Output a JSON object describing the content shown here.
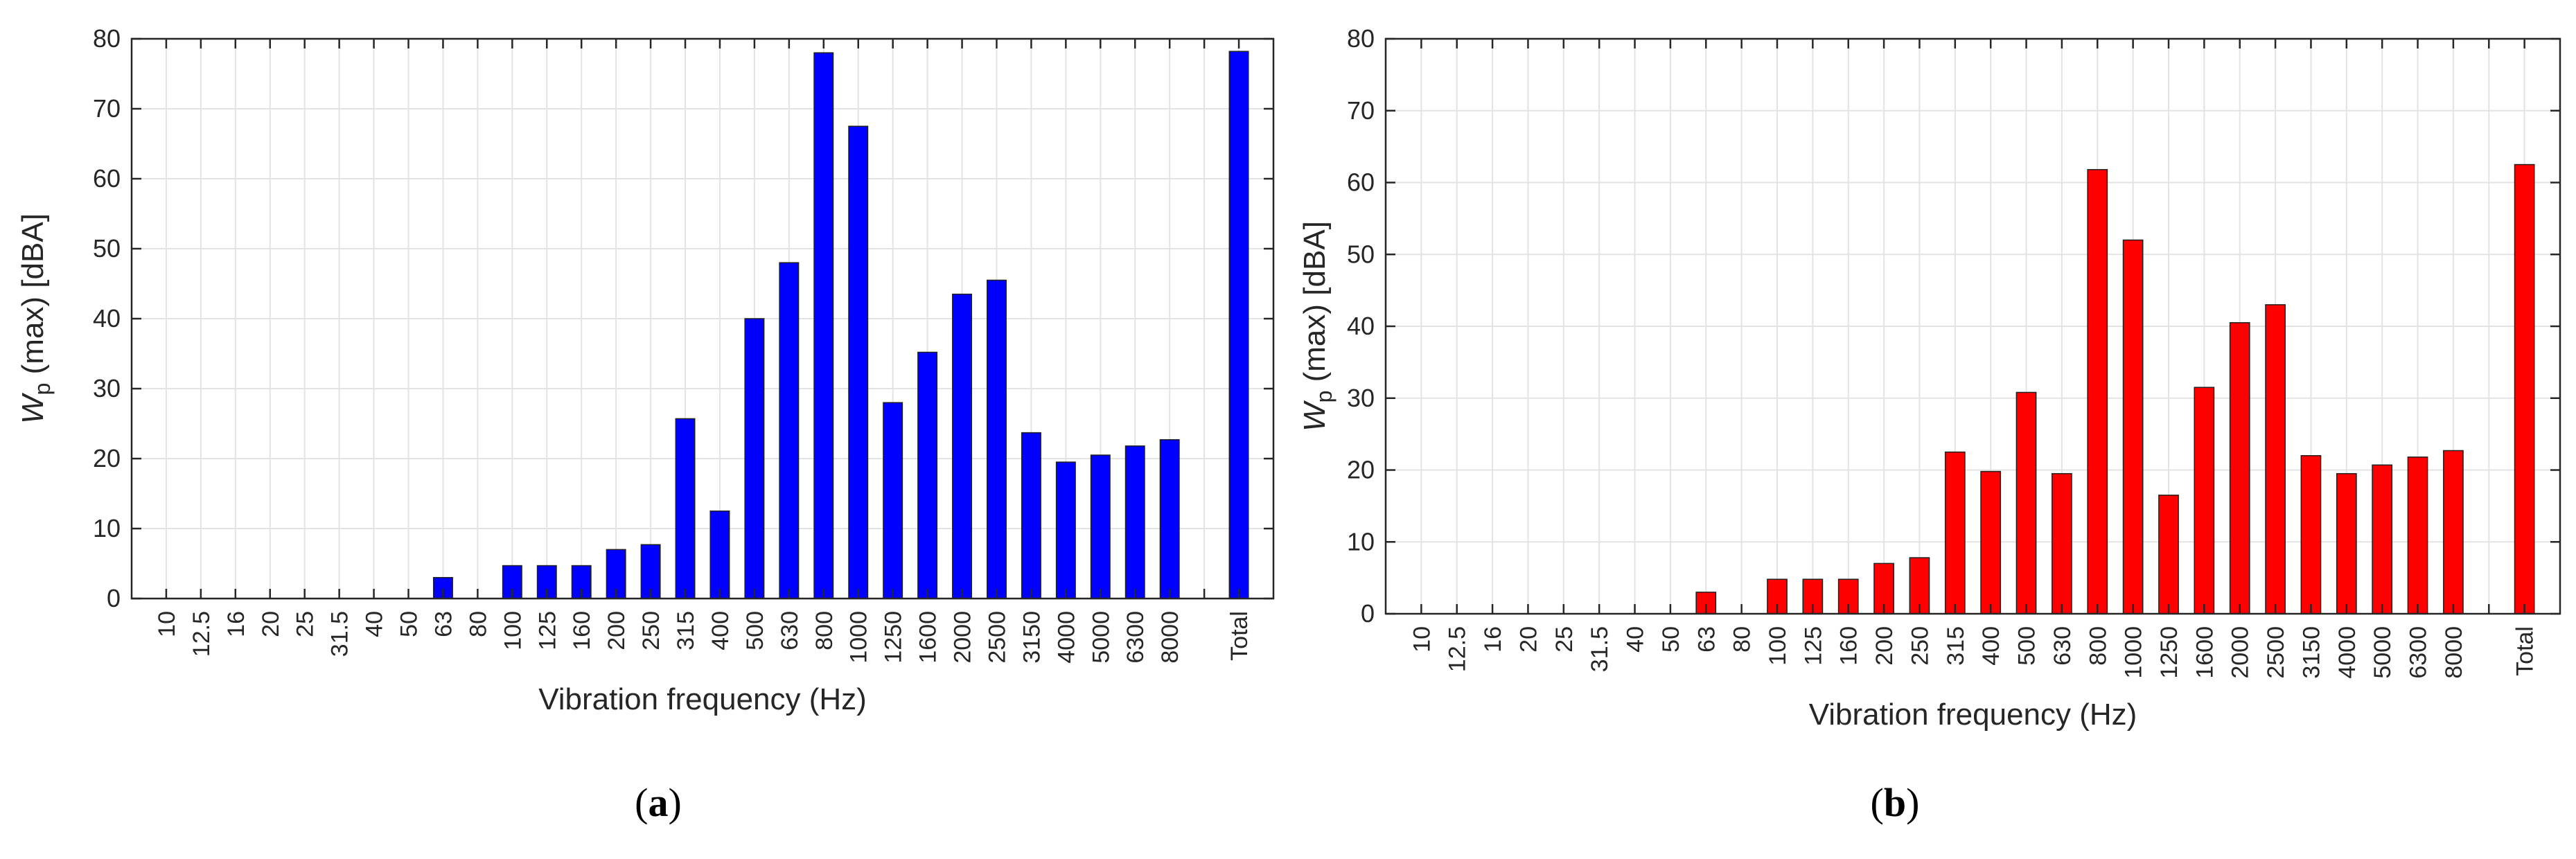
{
  "chart_data": [
    {
      "type": "bar",
      "panel_label": "(a)",
      "xlabel": "Vibration frequency (Hz)",
      "ylabel_main": "W",
      "ylabel_sub": "p",
      "ylabel_rest": " (max) [dBA]",
      "ylim": [
        0,
        80
      ],
      "yticks": [
        0,
        10,
        20,
        30,
        40,
        50,
        60,
        70,
        80
      ],
      "grid": true,
      "bar_color": "#0000ff",
      "categories": [
        "10",
        "12.5",
        "16",
        "20",
        "25",
        "31.5",
        "40",
        "50",
        "63",
        "80",
        "100",
        "125",
        "160",
        "200",
        "250",
        "315",
        "400",
        "500",
        "630",
        "800",
        "1000",
        "1250",
        "1600",
        "2000",
        "2500",
        "3150",
        "4000",
        "5000",
        "6300",
        "8000",
        "",
        "Total"
      ],
      "values": [
        0,
        0,
        0,
        0,
        0,
        0,
        0,
        0,
        3.0,
        0,
        4.7,
        4.7,
        4.7,
        7.0,
        7.7,
        25.7,
        12.5,
        40.0,
        48.0,
        78.0,
        67.5,
        28.0,
        35.2,
        43.5,
        45.5,
        23.7,
        19.5,
        20.5,
        21.8,
        22.7,
        null,
        78.2
      ]
    },
    {
      "type": "bar",
      "panel_label": "(b)",
      "xlabel": "Vibration frequency (Hz)",
      "ylabel_main": "W",
      "ylabel_sub": "p",
      "ylabel_rest": " (max) [dBA]",
      "ylim": [
        0,
        80
      ],
      "yticks": [
        0,
        10,
        20,
        30,
        40,
        50,
        60,
        70,
        80
      ],
      "grid": true,
      "bar_color": "#ff0000",
      "categories": [
        "10",
        "12.5",
        "16",
        "20",
        "25",
        "31.5",
        "40",
        "50",
        "63",
        "80",
        "100",
        "125",
        "160",
        "200",
        "250",
        "315",
        "400",
        "500",
        "630",
        "800",
        "1000",
        "1250",
        "1600",
        "2000",
        "2500",
        "3150",
        "4000",
        "5000",
        "6300",
        "8000",
        "",
        "Total"
      ],
      "values": [
        0,
        0,
        0,
        0,
        0,
        0,
        0,
        0,
        3.0,
        0,
        4.8,
        4.8,
        4.8,
        7.0,
        7.8,
        22.5,
        19.8,
        30.8,
        19.5,
        61.8,
        52.0,
        16.5,
        31.5,
        40.5,
        43.0,
        22.0,
        19.5,
        20.7,
        21.8,
        22.7,
        null,
        62.5
      ]
    }
  ]
}
